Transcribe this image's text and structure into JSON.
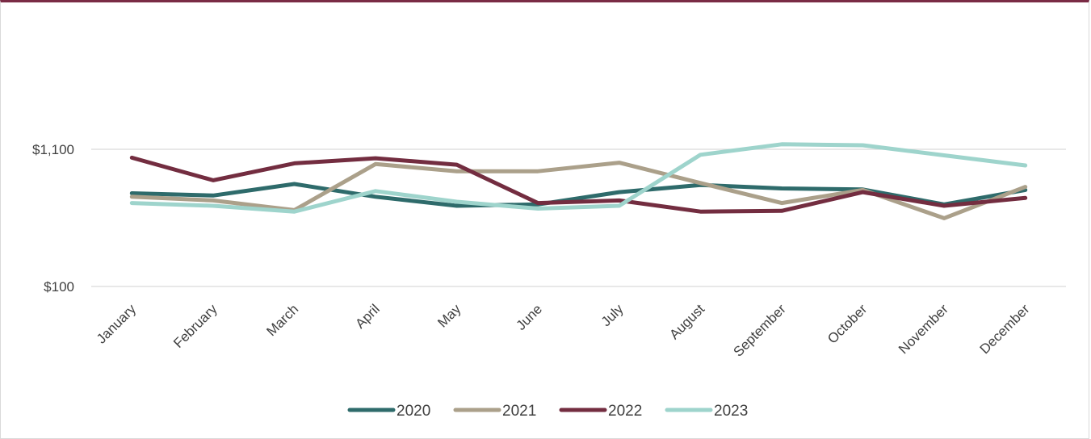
{
  "chart_data": {
    "type": "line",
    "title": "",
    "xlabel": "",
    "ylabel": "",
    "y_scale": "log",
    "ylim": [
      100,
      3200
    ],
    "y_ticks": [
      100,
      1100
    ],
    "y_tick_labels": [
      "$100",
      "$1,100"
    ],
    "grid": true,
    "legend_position": "bottom",
    "categories": [
      "January",
      "February",
      "March",
      "April",
      "May",
      "June",
      "July",
      "August",
      "September",
      "October",
      "November",
      "December"
    ],
    "series": [
      {
        "name": "2020",
        "color": "#2e6b6b",
        "values": [
          510,
          490,
          600,
          480,
          410,
          420,
          520,
          590,
          555,
          545,
          420,
          540
        ]
      },
      {
        "name": "2021",
        "color": "#aba08a",
        "values": [
          480,
          450,
          380,
          850,
          750,
          750,
          870,
          610,
          430,
          540,
          330,
          570
        ]
      },
      {
        "name": "2022",
        "color": "#732d40",
        "values": [
          950,
          640,
          860,
          940,
          840,
          430,
          450,
          370,
          375,
          520,
          410,
          470
        ]
      },
      {
        "name": "2023",
        "color": "#9ed4cc",
        "values": [
          430,
          410,
          370,
          530,
          440,
          390,
          410,
          1000,
          1200,
          1180,
          990,
          830
        ]
      }
    ]
  }
}
